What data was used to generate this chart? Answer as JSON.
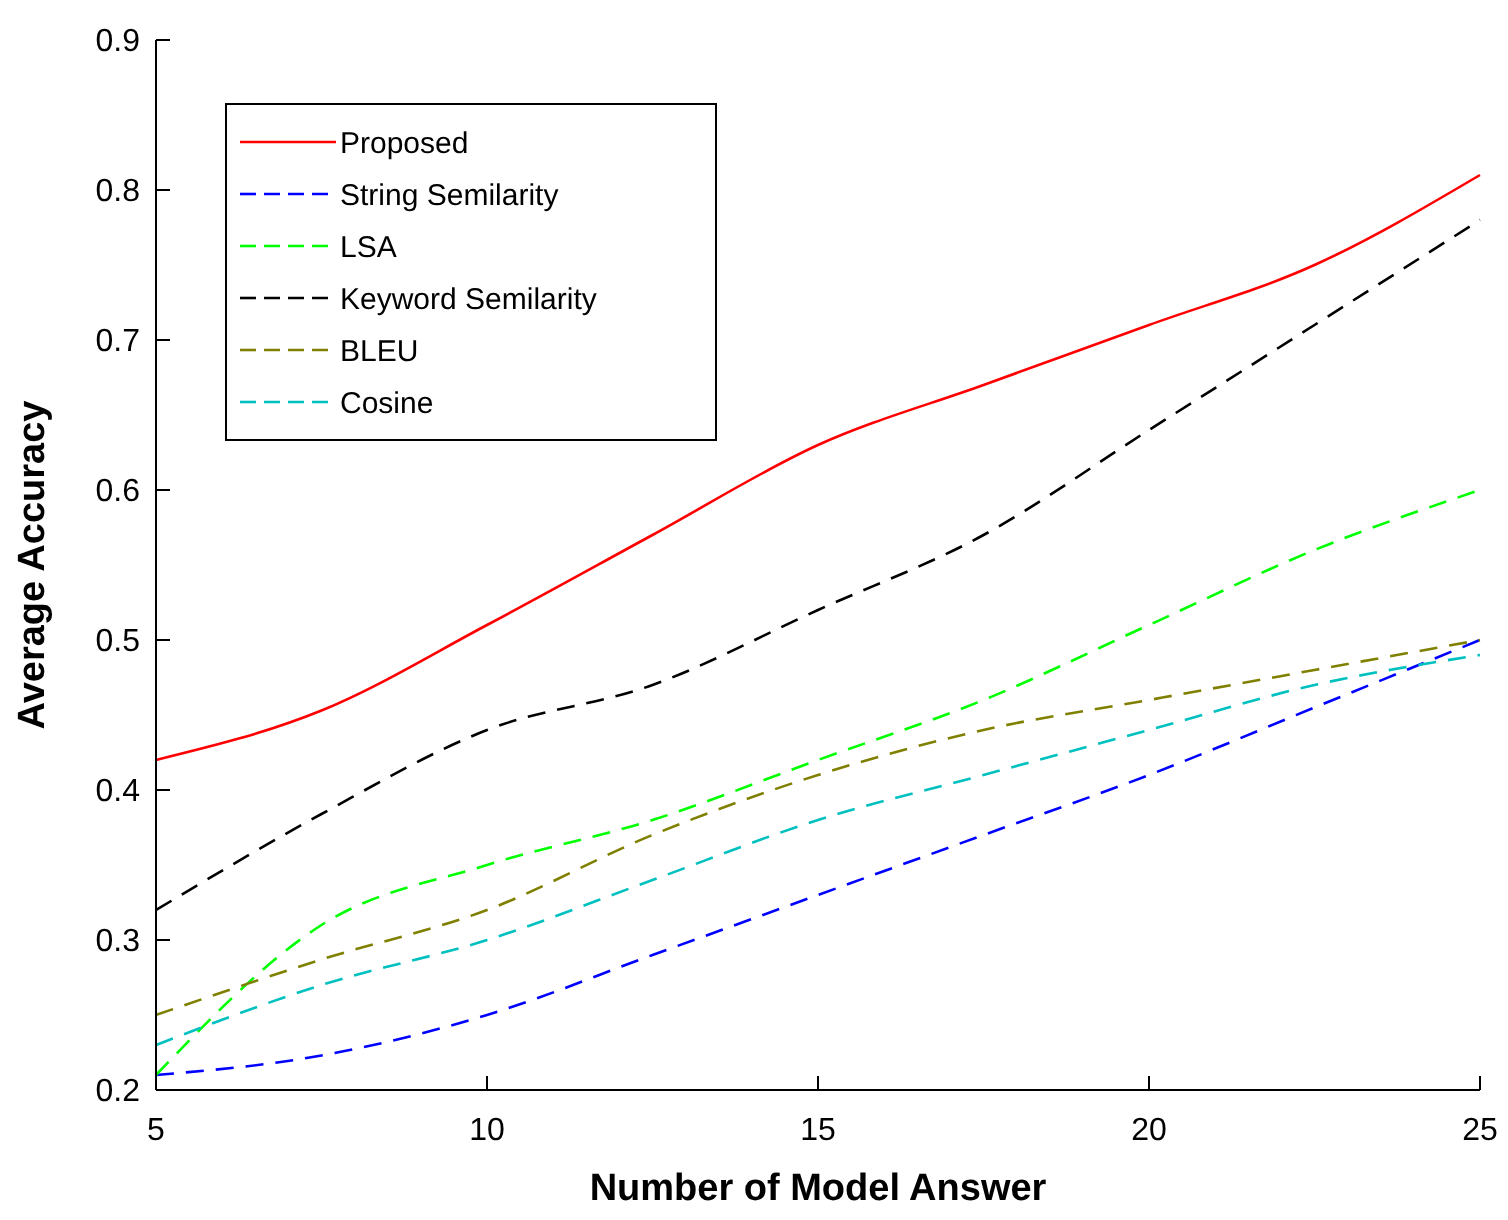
{
  "chart_data": {
    "type": "line",
    "xlabel": "Number of Model Answer",
    "ylabel": "Average Accuracy",
    "x": [
      5,
      7.5,
      10,
      12.5,
      15,
      17.5,
      20,
      22.5,
      25
    ],
    "xlim": [
      5,
      25
    ],
    "xticks": [
      5,
      10,
      15,
      20,
      25
    ],
    "ylim": [
      0.2,
      0.9
    ],
    "yticks": [
      0.2,
      0.3,
      0.4,
      0.5,
      0.6,
      0.7,
      0.8,
      0.9
    ],
    "grid": false,
    "legend": "top left",
    "series": [
      {
        "name": "Proposed",
        "color": "#ff0000",
        "line_style": "solid",
        "values": [
          0.42,
          0.453,
          0.51,
          0.57,
          0.63,
          0.67,
          0.71,
          0.75,
          0.81
        ]
      },
      {
        "name": "String Semilarity",
        "color": "#0000ff",
        "line_style": "dashed",
        "values": [
          0.21,
          0.223,
          0.25,
          0.29,
          0.33,
          0.37,
          0.41,
          0.455,
          0.5
        ]
      },
      {
        "name": "LSA",
        "color": "#00ff00",
        "line_style": "dashed",
        "values": [
          0.21,
          0.31,
          0.35,
          0.38,
          0.42,
          0.46,
          0.51,
          0.56,
          0.6
        ]
      },
      {
        "name": "Keyword Semilarity",
        "color": "#000000",
        "line_style": "dashed",
        "values": [
          0.32,
          0.384,
          0.44,
          0.47,
          0.52,
          0.57,
          0.64,
          0.71,
          0.78
        ]
      },
      {
        "name": "BLEU",
        "color": "#808000",
        "line_style": "dashed",
        "values": [
          0.25,
          0.287,
          0.32,
          0.37,
          0.41,
          0.44,
          0.46,
          0.48,
          0.5
        ]
      },
      {
        "name": "Cosine",
        "color": "#00c0c0",
        "line_style": "dashed",
        "values": [
          0.23,
          0.27,
          0.3,
          0.34,
          0.38,
          0.41,
          0.44,
          0.47,
          0.49
        ]
      }
    ]
  }
}
